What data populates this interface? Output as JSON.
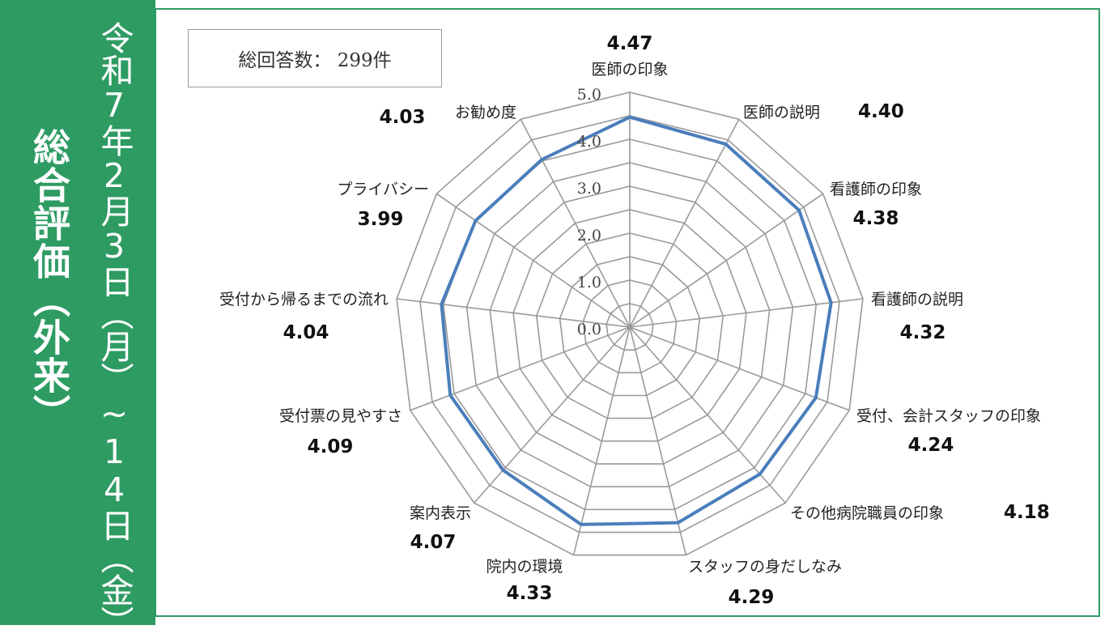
{
  "sidebar": {
    "title": "総合評価（外来）",
    "period": "令和7年2月3日（月）~14日（金）"
  },
  "summary": {
    "label": "総回答数：",
    "value": "299件"
  },
  "colors": {
    "accent": "#2e9b63",
    "series": "#4a7ebb",
    "grid": "#9a9a9a"
  },
  "chart_data": {
    "type": "radar",
    "categories": [
      "医師の印象",
      "医師の説明",
      "看護師の印象",
      "看護師の説明",
      "受付、会計スタッフの印象",
      "その他病院職員の印象",
      "スタッフの身だしなみ",
      "院内の環境",
      "案内表示",
      "受付票の見やすさ",
      "受付から帰るまでの流れ",
      "プライバシー",
      "お勧め度"
    ],
    "values": [
      4.47,
      4.4,
      4.38,
      4.32,
      4.24,
      4.18,
      4.29,
      4.33,
      4.07,
      4.09,
      4.04,
      3.99,
      4.03
    ],
    "value_labels": [
      "4.47",
      "4.40",
      "4.38",
      "4.32",
      "4.24",
      "4.18",
      "4.29",
      "4.33",
      "4.07",
      "4.09",
      "4.04",
      "3.99",
      "4.03"
    ],
    "r_ticks": [
      "0.0",
      "1.0",
      "2.0",
      "3.0",
      "4.0",
      "5.0"
    ],
    "rlim": [
      0,
      5
    ],
    "grid": true,
    "legend": "none"
  }
}
